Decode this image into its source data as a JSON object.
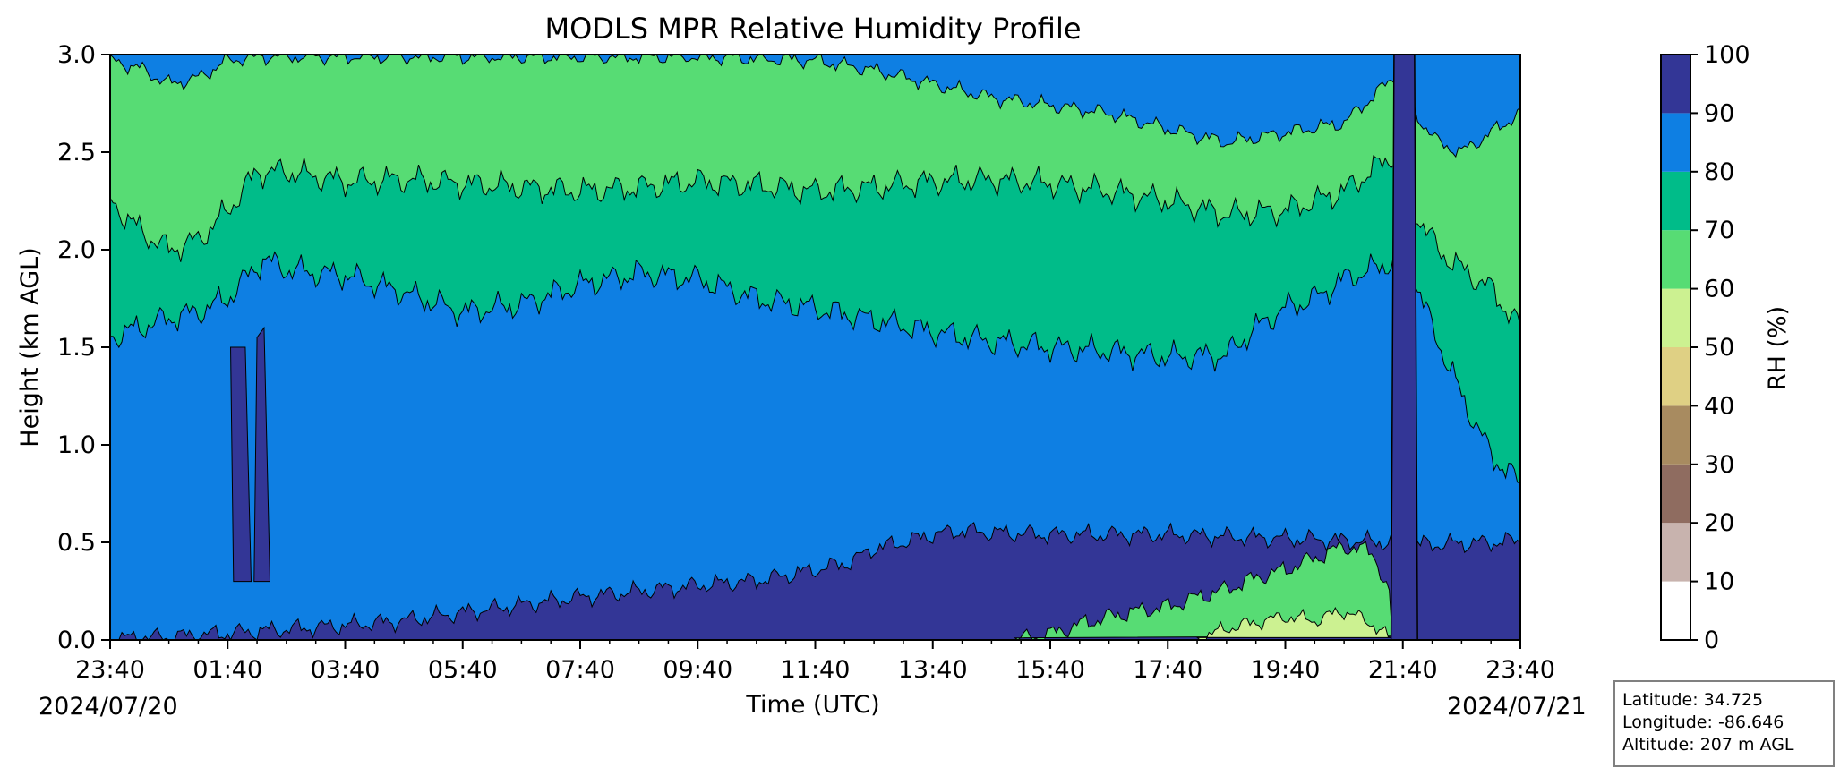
{
  "chart_data": {
    "type": "heatmap",
    "subtype": "filled-contour",
    "title": "MODLS MPR Relative Humidity Profile",
    "xlabel": "Time (UTC)",
    "ylabel": "Height (km AGL)",
    "x_ticks": [
      "23:40",
      "01:40",
      "03:40",
      "05:40",
      "07:40",
      "09:40",
      "11:40",
      "13:40",
      "15:40",
      "17:40",
      "19:40",
      "21:40",
      "23:40"
    ],
    "x_hours": [
      0,
      2,
      4,
      6,
      8,
      10,
      12,
      14,
      16,
      18,
      20,
      22,
      24
    ],
    "x_minor_step_hours": 0.5,
    "date_start": "2024/07/20",
    "date_end": "2024/07/21",
    "xlim_hours": [
      0,
      24
    ],
    "y_ticks": [
      "0.0",
      "0.5",
      "1.0",
      "1.5",
      "2.0",
      "2.5",
      "3.0"
    ],
    "ylim": [
      0,
      3.0
    ],
    "colorbar": {
      "label": "RH (%)",
      "levels": [
        0,
        10,
        20,
        30,
        40,
        50,
        60,
        70,
        80,
        90,
        100
      ],
      "tick_labels": [
        "0",
        "10",
        "20",
        "30",
        "40",
        "50",
        "60",
        "70",
        "80",
        "90",
        "100"
      ],
      "colors": [
        "#ffffff",
        "#c8b3ae",
        "#8f6c60",
        "#a88b60",
        "#dfd084",
        "#ccf191",
        "#57dc74",
        "#00bc89",
        "#0e7fe3",
        "#333696"
      ]
    },
    "boundaries": {
      "b90_top": [
        [
          0,
          0.05
        ],
        [
          0.5,
          0.1
        ],
        [
          1.0,
          0.15
        ],
        [
          1.5,
          0.25
        ],
        [
          2,
          0.35
        ],
        [
          3,
          0.55
        ],
        [
          4,
          0.75
        ],
        [
          5,
          1.0
        ],
        [
          6,
          1.4
        ],
        [
          7,
          1.8
        ],
        [
          8,
          2.2
        ],
        [
          9,
          2.5
        ],
        [
          10,
          2.8
        ],
        [
          11,
          3.05
        ],
        [
          11.5,
          3.3
        ],
        [
          12,
          3.6
        ],
        [
          12.6,
          4.0
        ],
        [
          13,
          4.7
        ],
        [
          13.5,
          5.0
        ],
        [
          14,
          5.4
        ],
        [
          14.5,
          5.6
        ],
        [
          15,
          5.5
        ],
        [
          16,
          5.4
        ],
        [
          17,
          5.4
        ],
        [
          18,
          5.4
        ],
        [
          19,
          5.3
        ],
        [
          20,
          5.2
        ],
        [
          21,
          5.1
        ],
        [
          21.8,
          5.0
        ],
        [
          21.82,
          5.2
        ],
        [
          21.9,
          5.0
        ],
        [
          22,
          4.9
        ],
        [
          22.5,
          4.9
        ],
        [
          23,
          4.95
        ],
        [
          23.5,
          5.0
        ],
        [
          24,
          5.1
        ]
      ],
      "b80_top": [
        [
          0,
          15.5
        ],
        [
          0.5,
          16.0
        ],
        [
          1,
          16.5
        ],
        [
          1.5,
          16.8
        ],
        [
          2,
          17.5
        ],
        [
          2.3,
          18.5
        ],
        [
          2.6,
          19.5
        ],
        [
          3,
          19.0
        ],
        [
          3.5,
          18.8
        ],
        [
          4,
          18.7
        ],
        [
          5,
          17.8
        ],
        [
          6,
          16.8
        ],
        [
          7,
          17.2
        ],
        [
          8,
          18.2
        ],
        [
          9,
          18.8
        ],
        [
          10,
          18.5
        ],
        [
          11,
          17.5
        ],
        [
          12,
          17.0
        ],
        [
          13,
          16.4
        ],
        [
          14,
          15.8
        ],
        [
          15,
          15.3
        ],
        [
          16,
          15.0
        ],
        [
          17,
          14.8
        ],
        [
          18,
          14.5
        ],
        [
          19,
          14.6
        ],
        [
          19.5,
          16.0
        ],
        [
          20,
          17.0
        ],
        [
          20.5,
          17.5
        ],
        [
          21,
          18.5
        ],
        [
          21.5,
          19.0
        ],
        [
          21.9,
          19.5
        ],
        [
          22.2,
          18.5
        ],
        [
          22.5,
          16.0
        ],
        [
          23,
          12.5
        ],
        [
          23.5,
          9.5
        ],
        [
          24,
          8.0
        ]
      ],
      "b70_top": [
        [
          0,
          22.5
        ],
        [
          0.5,
          21.0
        ],
        [
          1,
          20.0
        ],
        [
          1.5,
          20.5
        ],
        [
          2,
          22.0
        ],
        [
          2.5,
          24.0
        ],
        [
          3,
          24.0
        ],
        [
          4,
          23.5
        ],
        [
          5,
          23.6
        ],
        [
          6,
          23.4
        ],
        [
          7,
          23.2
        ],
        [
          8,
          23.0
        ],
        [
          9,
          23.2
        ],
        [
          10,
          23.5
        ],
        [
          11,
          23.3
        ],
        [
          12,
          23.0
        ],
        [
          13,
          23.2
        ],
        [
          14,
          23.5
        ],
        [
          15,
          23.6
        ],
        [
          16,
          23.4
        ],
        [
          17,
          23.0
        ],
        [
          18,
          22.5
        ],
        [
          19,
          21.8
        ],
        [
          20,
          22.0
        ],
        [
          21,
          23.0
        ],
        [
          21.9,
          25.0
        ],
        [
          22.2,
          22.0
        ],
        [
          22.6,
          20.0
        ],
        [
          23,
          19.0
        ],
        [
          23.5,
          18.0
        ],
        [
          24,
          16.0
        ]
      ],
      "b60_top": [
        [
          0,
          29.7
        ],
        [
          0.5,
          29.3
        ],
        [
          1,
          28.5
        ],
        [
          1.5,
          28.8
        ],
        [
          2,
          29.7
        ],
        [
          2.5,
          29.9
        ],
        [
          3,
          29.9
        ],
        [
          4,
          29.9
        ],
        [
          5,
          29.9
        ],
        [
          6,
          29.9
        ],
        [
          8,
          29.9
        ],
        [
          10,
          29.9
        ],
        [
          12,
          29.7
        ],
        [
          13,
          29.2
        ],
        [
          14,
          28.5
        ],
        [
          15,
          27.8
        ],
        [
          16,
          27.4
        ],
        [
          17,
          27.0
        ],
        [
          18,
          26.2
        ],
        [
          19,
          25.5
        ],
        [
          20,
          26.0
        ],
        [
          21,
          26.5
        ],
        [
          21.9,
          29.0
        ],
        [
          22.2,
          27.0
        ],
        [
          22.6,
          25.5
        ],
        [
          23,
          25.0
        ],
        [
          23.5,
          26.0
        ],
        [
          24,
          27.0
        ]
      ],
      "b60_bottom": [
        [
          15.4,
          0.0
        ],
        [
          16,
          0.3
        ],
        [
          16.5,
          0.8
        ],
        [
          17,
          1.2
        ],
        [
          17.5,
          1.5
        ],
        [
          18,
          1.7
        ],
        [
          18.5,
          2.2
        ],
        [
          19,
          2.6
        ],
        [
          19.5,
          3.2
        ],
        [
          20,
          3.6
        ],
        [
          20.5,
          4.2
        ],
        [
          21,
          4.8
        ],
        [
          21.5,
          4.5
        ],
        [
          21.8,
          2.0
        ],
        [
          21.82,
          0.0
        ]
      ],
      "b50_bottom": [
        [
          18.5,
          0.0
        ],
        [
          19,
          0.6
        ],
        [
          19.5,
          0.9
        ],
        [
          20,
          1.2
        ],
        [
          20.5,
          1.0
        ],
        [
          21,
          1.5
        ],
        [
          21.5,
          0.8
        ],
        [
          21.8,
          0.0
        ]
      ]
    }
  },
  "infobox": {
    "latitude": "Latitude: 34.725",
    "longitude": "Longitude: -86.646",
    "altitude": "Altitude: 207 m AGL"
  }
}
